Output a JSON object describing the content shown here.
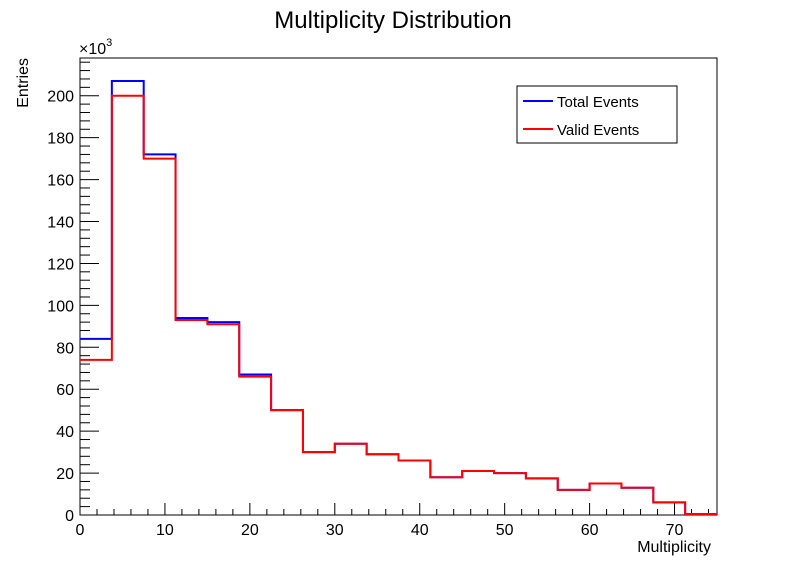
{
  "chart_data": {
    "type": "histogram",
    "title": "Multiplicity Distribution",
    "xlabel": "Multiplicity",
    "ylabel": "Entries",
    "y_multiplier": "×10",
    "y_multiplier_exp": "3",
    "xlim": [
      0,
      75
    ],
    "ylim": [
      0,
      218
    ],
    "x_ticks": [
      0,
      10,
      20,
      30,
      40,
      50,
      60,
      70
    ],
    "x_tick_labels": [
      "0",
      "10",
      "20",
      "30",
      "40",
      "50",
      "60",
      "70"
    ],
    "y_ticks": [
      0,
      20,
      40,
      60,
      80,
      100,
      120,
      140,
      160,
      180,
      200
    ],
    "y_tick_labels": [
      "0",
      "20",
      "40",
      "60",
      "80",
      "100",
      "120",
      "140",
      "160",
      "180",
      "200"
    ],
    "bin_edges": [
      0,
      3.75,
      7.5,
      11.25,
      15,
      18.75,
      22.5,
      26.25,
      30,
      33.75,
      37.5,
      41.25,
      45,
      48.75,
      52.5,
      56.25,
      60,
      63.75,
      67.5,
      71.25,
      75
    ],
    "series": [
      {
        "name": "Total Events",
        "color": "#0000ff",
        "values": [
          84,
          207,
          172,
          94,
          92,
          67,
          50,
          30,
          34,
          29,
          26,
          18,
          21,
          20,
          17.5,
          12,
          15,
          13,
          6,
          0.5
        ]
      },
      {
        "name": "Valid Events",
        "color": "#ff0000",
        "values": [
          74,
          200,
          170,
          93,
          91,
          66,
          50,
          30,
          34,
          29,
          26,
          18,
          21,
          20,
          17.5,
          12,
          15,
          13,
          6,
          0.5
        ]
      }
    ],
    "legend_position": "top-right",
    "grid": false
  }
}
